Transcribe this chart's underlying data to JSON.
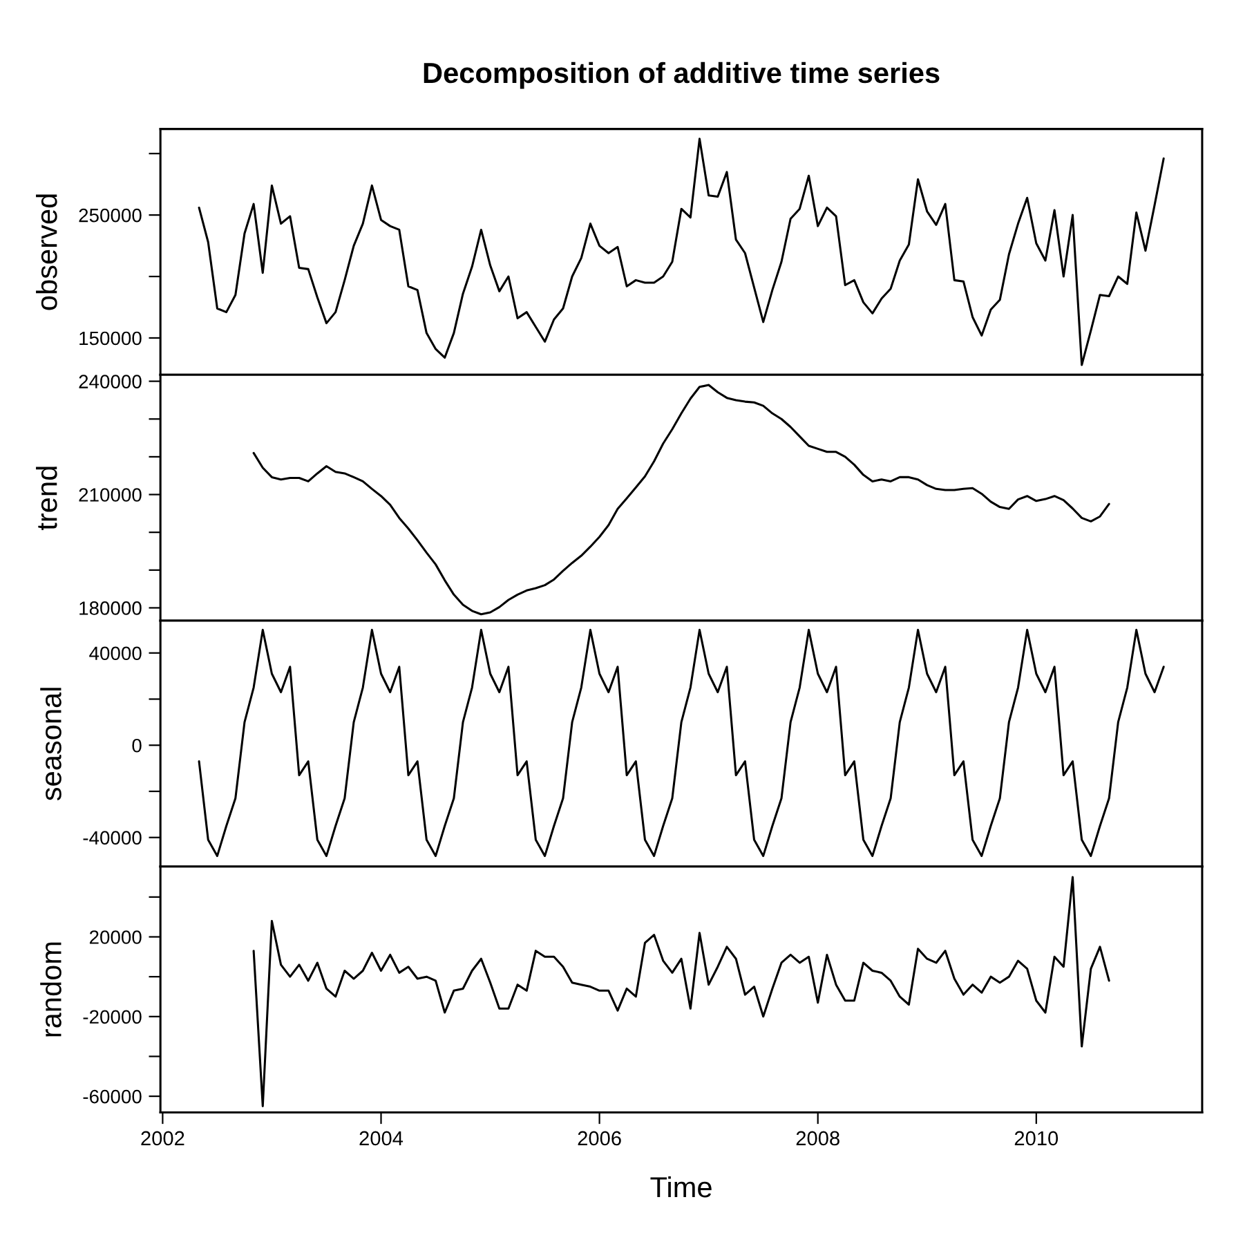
{
  "chart_data": [
    {
      "type": "line",
      "title": "Decomposition of additive time series",
      "ylabel": "observed",
      "tick_labels": "y",
      "x": [
        "2002-05",
        "2002-06",
        "2002-07",
        "2002-08",
        "2002-09",
        "2002-10",
        "2002-11",
        "2002-12",
        "2003-01",
        "2003-02",
        "2003-03",
        "2003-04",
        "2003-05",
        "2003-06",
        "2003-07",
        "2003-08",
        "2003-09",
        "2003-10",
        "2003-11",
        "2003-12",
        "2004-01",
        "2004-02",
        "2004-03",
        "2004-04",
        "2004-05",
        "2004-06",
        "2004-07",
        "2004-08",
        "2004-09",
        "2004-10",
        "2004-11",
        "2004-12",
        "2005-01",
        "2005-02",
        "2005-03",
        "2005-04",
        "2005-05",
        "2005-06",
        "2005-07",
        "2005-08",
        "2005-09",
        "2005-10",
        "2005-11",
        "2005-12",
        "2006-01",
        "2006-02",
        "2006-03",
        "2006-04",
        "2006-05",
        "2006-06",
        "2006-07",
        "2006-08",
        "2006-09",
        "2006-10",
        "2006-11",
        "2006-12",
        "2007-01",
        "2007-02",
        "2007-03",
        "2007-04",
        "2007-05",
        "2007-06",
        "2007-07",
        "2007-08",
        "2007-09",
        "2007-10",
        "2007-11",
        "2007-12",
        "2008-01",
        "2008-02",
        "2008-03",
        "2008-04",
        "2008-05",
        "2008-06",
        "2008-07",
        "2008-08",
        "2008-09",
        "2008-10",
        "2008-11",
        "2008-12",
        "2009-01",
        "2009-02",
        "2009-03",
        "2009-04",
        "2009-05",
        "2009-06",
        "2009-07",
        "2009-08",
        "2009-09",
        "2009-10",
        "2009-11",
        "2009-12",
        "2010-01",
        "2010-02",
        "2010-03",
        "2010-04",
        "2010-05",
        "2010-06",
        "2010-07",
        "2010-08",
        "2010-09",
        "2010-10",
        "2010-11",
        "2010-12",
        "2011-01",
        "2011-02",
        "2011-03"
      ],
      "xlim": [
        "2001-12-24",
        "2011-07-08"
      ],
      "ylim": [
        120000,
        320000
      ],
      "yticks": [
        150000,
        {
          "value": 200000,
          "label": null
        },
        250000,
        {
          "value": 300000,
          "label": null
        }
      ],
      "series": [
        {
          "color": "#000000",
          "values": [
            256000,
            228000,
            174000,
            171000,
            185000,
            235000,
            259000,
            203000,
            274000,
            243000,
            249000,
            207000,
            206000,
            183000,
            162000,
            171000,
            197000,
            225000,
            243000,
            274000,
            246000,
            241000,
            238000,
            192000,
            189000,
            154000,
            141000,
            134000,
            154000,
            186000,
            208000,
            238000,
            209000,
            188000,
            200000,
            166000,
            171000,
            159000,
            147000,
            165000,
            174000,
            200000,
            215000,
            243000,
            225000,
            219000,
            224000,
            192000,
            197000,
            195000,
            195000,
            200000,
            212000,
            255000,
            248000,
            312000,
            266000,
            265000,
            285000,
            230000,
            219000,
            191000,
            163000,
            189000,
            212000,
            247000,
            255000,
            282000,
            241000,
            256000,
            249000,
            193000,
            197000,
            179000,
            170000,
            182000,
            190000,
            213000,
            226000,
            279000,
            253000,
            242000,
            259000,
            197000,
            196000,
            167000,
            152000,
            173000,
            181000,
            218000,
            243000,
            264000,
            227000,
            213000,
            254000,
            200000,
            250000,
            128000,
            156000,
            185000,
            184000,
            200000,
            194000,
            252000,
            221000,
            258000,
            296000
          ]
        }
      ]
    },
    {
      "type": "line",
      "ylabel": "trend",
      "tick_labels": "y",
      "x": [
        "2002-11",
        "2002-12",
        "2003-01",
        "2003-02",
        "2003-03",
        "2003-04",
        "2003-05",
        "2003-06",
        "2003-07",
        "2003-08",
        "2003-09",
        "2003-10",
        "2003-11",
        "2003-12",
        "2004-01",
        "2004-02",
        "2004-03",
        "2004-04",
        "2004-05",
        "2004-06",
        "2004-07",
        "2004-08",
        "2004-09",
        "2004-10",
        "2004-11",
        "2004-12",
        "2005-01",
        "2005-02",
        "2005-03",
        "2005-04",
        "2005-05",
        "2005-06",
        "2005-07",
        "2005-08",
        "2005-09",
        "2005-10",
        "2005-11",
        "2005-12",
        "2006-01",
        "2006-02",
        "2006-03",
        "2006-04",
        "2006-05",
        "2006-06",
        "2006-07",
        "2006-08",
        "2006-09",
        "2006-10",
        "2006-11",
        "2006-12",
        "2007-01",
        "2007-02",
        "2007-03",
        "2007-04",
        "2007-05",
        "2007-06",
        "2007-07",
        "2007-08",
        "2007-09",
        "2007-10",
        "2007-11",
        "2007-12",
        "2008-01",
        "2008-02",
        "2008-03",
        "2008-04",
        "2008-05",
        "2008-06",
        "2008-07",
        "2008-08",
        "2008-09",
        "2008-10",
        "2008-11",
        "2008-12",
        "2009-01",
        "2009-02",
        "2009-03",
        "2009-04",
        "2009-05",
        "2009-06",
        "2009-07",
        "2009-08",
        "2009-09",
        "2009-10",
        "2009-11",
        "2009-12",
        "2010-01",
        "2010-02",
        "2010-03",
        "2010-04",
        "2010-05",
        "2010-06",
        "2010-07",
        "2010-08",
        "2010-09"
      ],
      "xlim": [
        "2001-12-24",
        "2011-07-08"
      ],
      "ylim": [
        176600,
        241700
      ],
      "yticks": [
        180000,
        {
          "value": 190000,
          "label": null
        },
        {
          "value": 200000,
          "label": null
        },
        210000,
        {
          "value": 220000,
          "label": null
        },
        {
          "value": 230000,
          "label": null
        },
        240000
      ],
      "series": [
        {
          "color": "#000000",
          "values": [
            221000,
            217100,
            214600,
            214000,
            214400,
            214400,
            213500,
            215600,
            217500,
            216000,
            215600,
            214600,
            213500,
            211500,
            209600,
            207300,
            203800,
            201000,
            197900,
            194600,
            191500,
            187300,
            183500,
            180800,
            179200,
            178300,
            178800,
            180200,
            182100,
            183500,
            184600,
            185200,
            186000,
            187500,
            189800,
            191900,
            193800,
            196200,
            198800,
            201900,
            206200,
            209000,
            211900,
            214800,
            218800,
            223500,
            227300,
            231500,
            235400,
            238500,
            239000,
            237100,
            235600,
            235000,
            234600,
            234400,
            233500,
            231500,
            230000,
            227900,
            225400,
            222900,
            222100,
            221300,
            221300,
            220000,
            217900,
            215200,
            213500,
            214000,
            213500,
            214600,
            214600,
            214000,
            212500,
            211500,
            211200,
            211200,
            211500,
            211700,
            210200,
            208100,
            206700,
            206200,
            208700,
            209600,
            208300,
            208800,
            209600,
            208500,
            206300,
            203800,
            202900,
            204200,
            207500
          ]
        }
      ]
    },
    {
      "type": "line",
      "ylabel": "seasonal",
      "tick_labels": "y",
      "x": [
        "2002-05",
        "2002-06",
        "2002-07",
        "2002-08",
        "2002-09",
        "2002-10",
        "2002-11",
        "2002-12",
        "2003-01",
        "2003-02",
        "2003-03",
        "2003-04",
        "2003-05",
        "2003-06",
        "2003-07",
        "2003-08",
        "2003-09",
        "2003-10",
        "2003-11",
        "2003-12",
        "2004-01",
        "2004-02",
        "2004-03",
        "2004-04",
        "2004-05",
        "2004-06",
        "2004-07",
        "2004-08",
        "2004-09",
        "2004-10",
        "2004-11",
        "2004-12",
        "2005-01",
        "2005-02",
        "2005-03",
        "2005-04",
        "2005-05",
        "2005-06",
        "2005-07",
        "2005-08",
        "2005-09",
        "2005-10",
        "2005-11",
        "2005-12",
        "2006-01",
        "2006-02",
        "2006-03",
        "2006-04",
        "2006-05",
        "2006-06",
        "2006-07",
        "2006-08",
        "2006-09",
        "2006-10",
        "2006-11",
        "2006-12",
        "2007-01",
        "2007-02",
        "2007-03",
        "2007-04",
        "2007-05",
        "2007-06",
        "2007-07",
        "2007-08",
        "2007-09",
        "2007-10",
        "2007-11",
        "2007-12",
        "2008-01",
        "2008-02",
        "2008-03",
        "2008-04",
        "2008-05",
        "2008-06",
        "2008-07",
        "2008-08",
        "2008-09",
        "2008-10",
        "2008-11",
        "2008-12",
        "2009-01",
        "2009-02",
        "2009-03",
        "2009-04",
        "2009-05",
        "2009-06",
        "2009-07",
        "2009-08",
        "2009-09",
        "2009-10",
        "2009-11",
        "2009-12",
        "2010-01",
        "2010-02",
        "2010-03",
        "2010-04",
        "2010-05",
        "2010-06",
        "2010-07",
        "2010-08",
        "2010-09",
        "2010-10",
        "2010-11",
        "2010-12",
        "2011-01",
        "2011-02",
        "2011-03"
      ],
      "xlim": [
        "2001-12-24",
        "2011-07-08"
      ],
      "ylim": [
        -52600,
        54000
      ],
      "yticks": [
        -40000,
        {
          "value": -20000,
          "label": null
        },
        0,
        {
          "value": 20000,
          "label": null
        },
        40000
      ],
      "series": [
        {
          "color": "#000000",
          "values": [
            -7000,
            -41000,
            -48000,
            -35000,
            -23000,
            10000,
            25000,
            50000,
            31000,
            23000,
            34000,
            -13000,
            -7000,
            -41000,
            -48000,
            -35000,
            -23000,
            10000,
            25000,
            50000,
            31000,
            23000,
            34000,
            -13000,
            -7000,
            -41000,
            -48000,
            -35000,
            -23000,
            10000,
            25000,
            50000,
            31000,
            23000,
            34000,
            -13000,
            -7000,
            -41000,
            -48000,
            -35000,
            -23000,
            10000,
            25000,
            50000,
            31000,
            23000,
            34000,
            -13000,
            -7000,
            -41000,
            -48000,
            -35000,
            -23000,
            10000,
            25000,
            50000,
            31000,
            23000,
            34000,
            -13000,
            -7000,
            -41000,
            -48000,
            -35000,
            -23000,
            10000,
            25000,
            50000,
            31000,
            23000,
            34000,
            -13000,
            -7000,
            -41000,
            -48000,
            -35000,
            -23000,
            10000,
            25000,
            50000,
            31000,
            23000,
            34000,
            -13000,
            -7000,
            -41000,
            -48000,
            -35000,
            -23000,
            10000,
            25000,
            50000,
            31000,
            23000,
            34000,
            -13000,
            -7000,
            -41000,
            -48000,
            -35000,
            -23000,
            10000,
            25000,
            50000,
            31000,
            23000,
            34000
          ]
        }
      ]
    },
    {
      "type": "line",
      "ylabel": "random",
      "xlabel": "Time",
      "x": [
        "2002-11",
        "2002-12",
        "2003-01",
        "2003-02",
        "2003-03",
        "2003-04",
        "2003-05",
        "2003-06",
        "2003-07",
        "2003-08",
        "2003-09",
        "2003-10",
        "2003-11",
        "2003-12",
        "2004-01",
        "2004-02",
        "2004-03",
        "2004-04",
        "2004-05",
        "2004-06",
        "2004-07",
        "2004-08",
        "2004-09",
        "2004-10",
        "2004-11",
        "2004-12",
        "2005-01",
        "2005-02",
        "2005-03",
        "2005-04",
        "2005-05",
        "2005-06",
        "2005-07",
        "2005-08",
        "2005-09",
        "2005-10",
        "2005-11",
        "2005-12",
        "2006-01",
        "2006-02",
        "2006-03",
        "2006-04",
        "2006-05",
        "2006-06",
        "2006-07",
        "2006-08",
        "2006-09",
        "2006-10",
        "2006-11",
        "2006-12",
        "2007-01",
        "2007-02",
        "2007-03",
        "2007-04",
        "2007-05",
        "2007-06",
        "2007-07",
        "2007-08",
        "2007-09",
        "2007-10",
        "2007-11",
        "2007-12",
        "2008-01",
        "2008-02",
        "2008-03",
        "2008-04",
        "2008-05",
        "2008-06",
        "2008-07",
        "2008-08",
        "2008-09",
        "2008-10",
        "2008-11",
        "2008-12",
        "2009-01",
        "2009-02",
        "2009-03",
        "2009-04",
        "2009-05",
        "2009-06",
        "2009-07",
        "2009-08",
        "2009-09",
        "2009-10",
        "2009-11",
        "2009-12",
        "2010-01",
        "2010-02",
        "2010-03",
        "2010-04",
        "2010-05",
        "2010-06",
        "2010-07",
        "2010-08",
        "2010-09"
      ],
      "xlim": [
        "2001-12-24",
        "2011-07-08"
      ],
      "xticks": [
        "2002",
        "2004",
        "2006",
        "2008",
        "2010"
      ],
      "ylim": [
        -68100,
        55300
      ],
      "yticks": [
        -60000,
        {
          "value": -40000,
          "label": null
        },
        -20000,
        {
          "value": 0,
          "label": null
        },
        20000,
        {
          "value": 40000,
          "label": null
        }
      ],
      "series": [
        {
          "color": "#000000",
          "values": [
            13000,
            -65000,
            28000,
            6000,
            0,
            6000,
            -2000,
            7000,
            -6000,
            -10000,
            3000,
            -1000,
            3000,
            12000,
            3000,
            11000,
            2000,
            5000,
            -1000,
            0,
            -2000,
            -18000,
            -7000,
            -6000,
            3000,
            9000,
            -3000,
            -16000,
            -16000,
            -4000,
            -7000,
            13000,
            10000,
            10000,
            5000,
            -3000,
            -4000,
            -5000,
            -7000,
            -7000,
            -17000,
            -6000,
            -10000,
            17000,
            21000,
            8000,
            2000,
            9000,
            -16000,
            22000,
            -4000,
            5000,
            15000,
            9000,
            -9000,
            -5000,
            -20000,
            -6000,
            7000,
            11000,
            7000,
            10000,
            -13000,
            11000,
            -4000,
            -12000,
            -12000,
            7000,
            3000,
            2000,
            -2000,
            -10000,
            -14000,
            14000,
            9000,
            7000,
            13000,
            -1000,
            -9000,
            -4000,
            -8000,
            0,
            -3000,
            0,
            8000,
            4000,
            -12000,
            -18000,
            10000,
            5000,
            50000,
            -35000,
            4000,
            15000,
            -2000
          ]
        }
      ]
    }
  ]
}
